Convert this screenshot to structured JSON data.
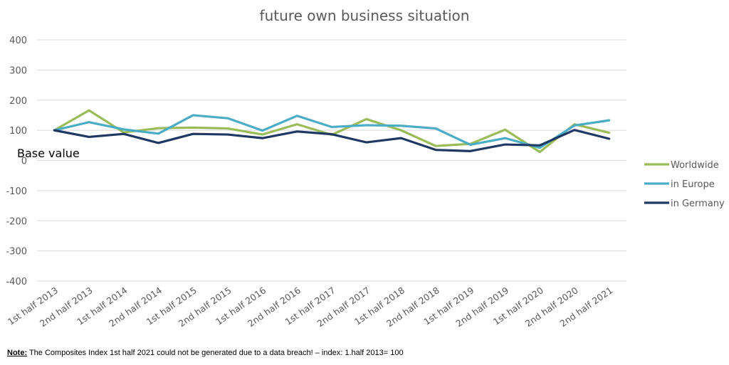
{
  "chart_data": {
    "type": "line",
    "title": "future own business situation",
    "xlabel": "",
    "ylabel": "",
    "ylim": [
      -400,
      400
    ],
    "yticks": [
      400,
      300,
      200,
      100,
      0,
      -100,
      -200,
      -300,
      -400
    ],
    "grid": true,
    "legend_position": "right",
    "annotation": "Base value",
    "categories": [
      "1st half 2013",
      "2nd half 2013",
      "1st half 2014",
      "2nd half 2014",
      "1st half 2015",
      "2nd half 2015",
      "1st half 2016",
      "2nd half 2016",
      "1st half 2017",
      "2nd half 2017",
      "1st half 2018",
      "2nd half 2018",
      "1st half 2019",
      "2nd half 2019",
      "1st half 2020",
      "2nd half 2020",
      "2nd half 2021"
    ],
    "series": [
      {
        "name": "Worldwide",
        "color": "#9bbb59",
        "values": [
          100,
          166,
          93,
          107,
          109,
          106,
          86,
          120,
          85,
          137,
          100,
          48,
          55,
          102,
          28,
          120,
          92
        ]
      },
      {
        "name": "in Europe",
        "color": "#4bacc6",
        "values": [
          100,
          127,
          103,
          89,
          150,
          140,
          99,
          148,
          111,
          117,
          115,
          106,
          52,
          74,
          42,
          116,
          133
        ]
      },
      {
        "name": "in Germany",
        "color": "#1f3864",
        "values": [
          100,
          78,
          88,
          58,
          88,
          86,
          74,
          96,
          87,
          60,
          74,
          35,
          31,
          53,
          50,
          101,
          72
        ]
      }
    ]
  },
  "note": {
    "label": "Note:",
    "text": " The Composites Index 1st half  2021 could not be generated due to a data breach! – index: 1.half 2013= 100"
  }
}
